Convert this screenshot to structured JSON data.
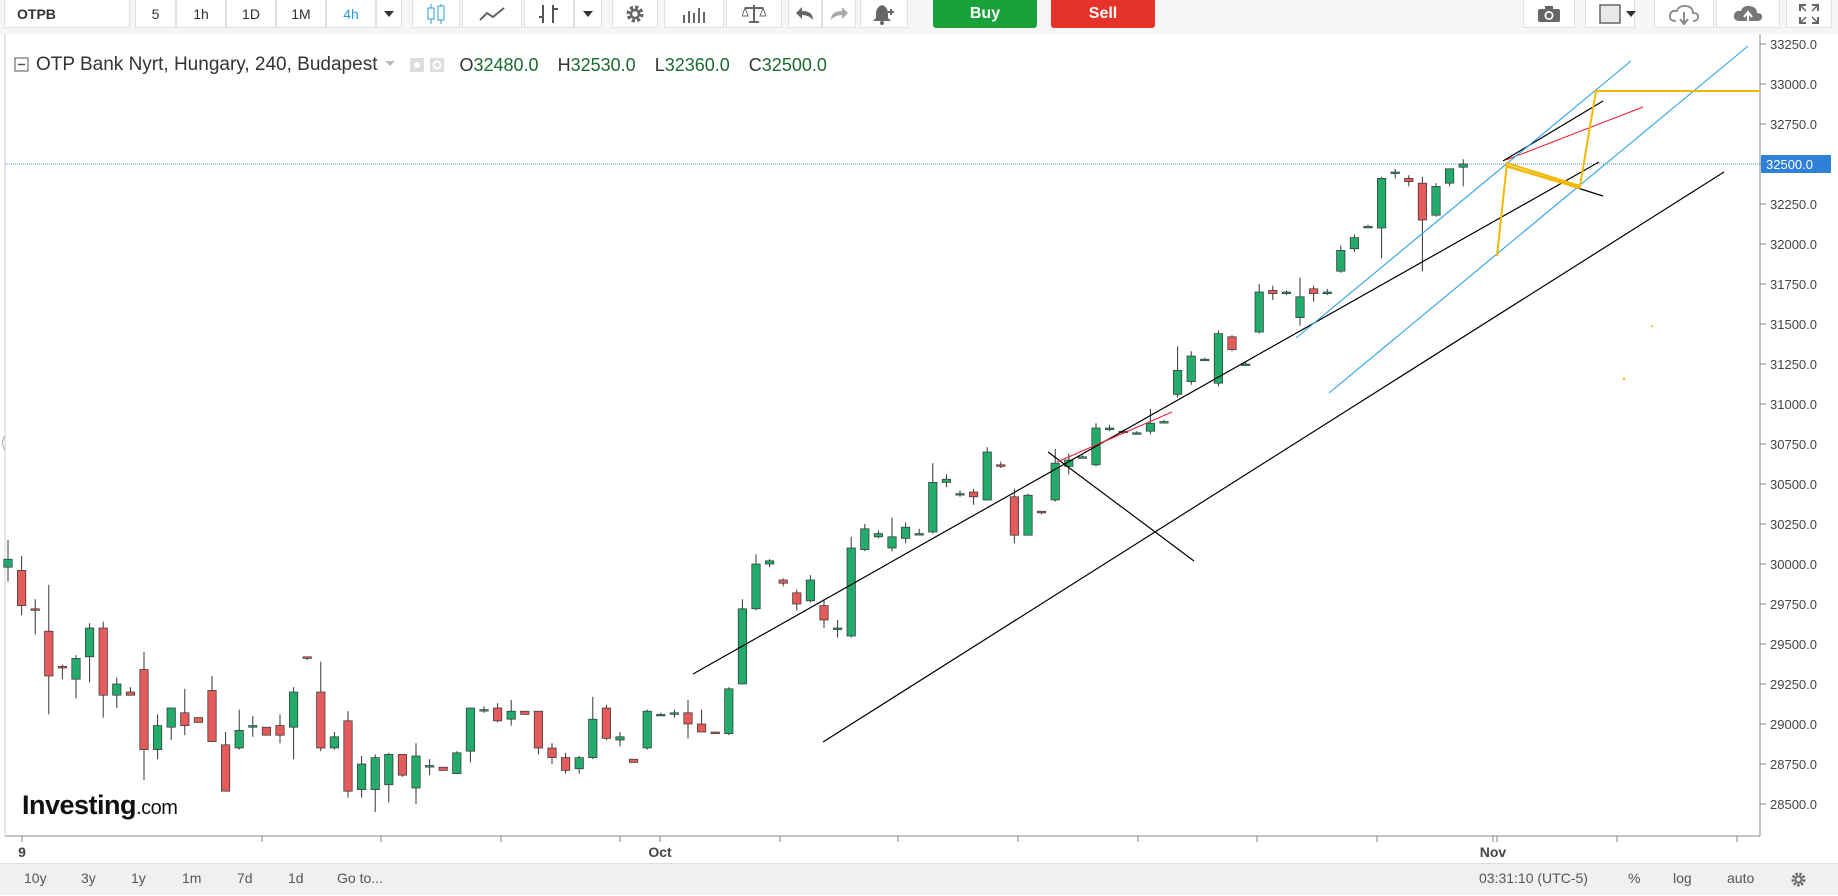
{
  "toolbar": {
    "symbol": "OTPB",
    "intervals": [
      "5",
      "1h",
      "1D",
      "1M",
      "4h"
    ],
    "active_interval": "4h",
    "buy_label": "Buy",
    "sell_label": "Sell",
    "icons": [
      "dropdown-icon",
      "candles-icon",
      "line-chart-icon",
      "indicators-icon",
      "dropdown-icon",
      "settings-icon",
      "bars-icon",
      "compare-icon",
      "undo-icon",
      "redo-icon",
      "alert-bell-icon",
      "camera-icon",
      "color-box-icon",
      "dropdown-icon",
      "cloud-download-icon",
      "cloud-upload-icon",
      "fullscreen-icon"
    ]
  },
  "legend": {
    "title": "OTP Bank Nyrt, Hungary, 240, Budapest",
    "o_label": "O",
    "o_value": "32480.0",
    "h_label": "H",
    "h_value": "32530.0",
    "l_label": "L",
    "l_value": "32360.0",
    "c_label": "C",
    "c_value": "32500.0"
  },
  "bottom": {
    "ranges": [
      "10y",
      "3y",
      "1y",
      "1m",
      "7d",
      "1d"
    ],
    "goto": "Go to...",
    "time": "03:31:10 (UTC-5)",
    "percent": "%",
    "log": "log",
    "auto": "auto"
  },
  "logo": {
    "main": "Investing",
    "suffix": ".com"
  },
  "colors": {
    "up": "#22ab6a",
    "down": "#e35b5b",
    "channel": "#000000",
    "inner_channel": "#29a4e6",
    "resistance": "#e8192c",
    "flag": "#f5b800",
    "price_line": "#2f6ad0",
    "price_tag": "#2f80d8"
  },
  "chart_data": {
    "type": "candlestick",
    "title": "OTP Bank Nyrt, Hungary, 240, Budapest",
    "x_tick_labels": [
      "9",
      "Oct",
      "Nov"
    ],
    "y_ticks": [
      28500,
      28750,
      29000,
      29250,
      29500,
      29750,
      30000,
      30250,
      30500,
      30750,
      31000,
      31250,
      31500,
      31750,
      32000,
      32250,
      32500,
      32750,
      33000,
      33250
    ],
    "ylim": [
      28300,
      33270
    ],
    "last_price": 32500.0,
    "last_price_label": "32500.0",
    "grid": false,
    "candles": [
      {
        "o": 29980,
        "h": 30150,
        "l": 29890,
        "c": 30030
      },
      {
        "o": 29960,
        "h": 30050,
        "l": 29680,
        "c": 29740
      },
      {
        "o": 29720,
        "h": 29780,
        "l": 29560,
        "c": 29710
      },
      {
        "o": 29580,
        "h": 29870,
        "l": 29060,
        "c": 29300
      },
      {
        "o": 29360,
        "h": 29370,
        "l": 29280,
        "c": 29350
      },
      {
        "o": 29280,
        "h": 29430,
        "l": 29160,
        "c": 29410
      },
      {
        "o": 29420,
        "h": 29630,
        "l": 29260,
        "c": 29600
      },
      {
        "o": 29600,
        "h": 29640,
        "l": 29040,
        "c": 29180
      },
      {
        "o": 29180,
        "h": 29290,
        "l": 29100,
        "c": 29250
      },
      {
        "o": 29200,
        "h": 29230,
        "l": 29180,
        "c": 29180
      },
      {
        "o": 29340,
        "h": 29450,
        "l": 28650,
        "c": 28840
      },
      {
        "o": 28840,
        "h": 29060,
        "l": 28780,
        "c": 28990
      },
      {
        "o": 28980,
        "h": 29090,
        "l": 28900,
        "c": 29100
      },
      {
        "o": 29070,
        "h": 29220,
        "l": 28930,
        "c": 28990
      },
      {
        "o": 29040,
        "h": 29040,
        "l": 29010,
        "c": 29010
      },
      {
        "o": 29210,
        "h": 29300,
        "l": 28890,
        "c": 28890
      },
      {
        "o": 28870,
        "h": 28950,
        "l": 28580,
        "c": 28580
      },
      {
        "o": 28850,
        "h": 29090,
        "l": 28840,
        "c": 28960
      },
      {
        "o": 28980,
        "h": 29050,
        "l": 28920,
        "c": 28990
      },
      {
        "o": 28980,
        "h": 28980,
        "l": 28930,
        "c": 28930
      },
      {
        "o": 28990,
        "h": 29060,
        "l": 28880,
        "c": 28930
      },
      {
        "o": 28980,
        "h": 29230,
        "l": 28780,
        "c": 29200
      },
      {
        "o": 29420,
        "h": 29420,
        "l": 29400,
        "c": 29410
      },
      {
        "o": 29200,
        "h": 29390,
        "l": 28830,
        "c": 28850
      },
      {
        "o": 28850,
        "h": 28950,
        "l": 28840,
        "c": 28920
      },
      {
        "o": 29020,
        "h": 29080,
        "l": 28540,
        "c": 28580
      },
      {
        "o": 28590,
        "h": 28800,
        "l": 28540,
        "c": 28750
      },
      {
        "o": 28590,
        "h": 28810,
        "l": 28450,
        "c": 28790
      },
      {
        "o": 28620,
        "h": 28820,
        "l": 28510,
        "c": 28810
      },
      {
        "o": 28810,
        "h": 28810,
        "l": 28670,
        "c": 28680
      },
      {
        "o": 28600,
        "h": 28880,
        "l": 28500,
        "c": 28800
      },
      {
        "o": 28740,
        "h": 28780,
        "l": 28680,
        "c": 28740
      },
      {
        "o": 28730,
        "h": 28730,
        "l": 28710,
        "c": 28710
      },
      {
        "o": 28690,
        "h": 28830,
        "l": 28690,
        "c": 28820
      },
      {
        "o": 28830,
        "h": 29100,
        "l": 28760,
        "c": 29100
      },
      {
        "o": 29090,
        "h": 29110,
        "l": 29070,
        "c": 29090
      },
      {
        "o": 29100,
        "h": 29130,
        "l": 29010,
        "c": 29020
      },
      {
        "o": 29030,
        "h": 29150,
        "l": 28990,
        "c": 29080
      },
      {
        "o": 29080,
        "h": 29080,
        "l": 29060,
        "c": 29060
      },
      {
        "o": 29080,
        "h": 29080,
        "l": 28810,
        "c": 28850
      },
      {
        "o": 28850,
        "h": 28880,
        "l": 28750,
        "c": 28790
      },
      {
        "o": 28790,
        "h": 28820,
        "l": 28690,
        "c": 28710
      },
      {
        "o": 28720,
        "h": 28800,
        "l": 28690,
        "c": 28790
      },
      {
        "o": 28790,
        "h": 29170,
        "l": 28780,
        "c": 29030
      },
      {
        "o": 29100,
        "h": 29120,
        "l": 28900,
        "c": 28910
      },
      {
        "o": 28900,
        "h": 28950,
        "l": 28860,
        "c": 28920
      },
      {
        "o": 28780,
        "h": 28780,
        "l": 28760,
        "c": 28760
      },
      {
        "o": 28850,
        "h": 29090,
        "l": 28840,
        "c": 29080
      },
      {
        "o": 29060,
        "h": 29070,
        "l": 29050,
        "c": 29060
      },
      {
        "o": 29070,
        "h": 29090,
        "l": 29040,
        "c": 29070
      },
      {
        "o": 29070,
        "h": 29150,
        "l": 28910,
        "c": 29000
      },
      {
        "o": 29000,
        "h": 29090,
        "l": 28960,
        "c": 28950
      },
      {
        "o": 28950,
        "h": 28950,
        "l": 28940,
        "c": 28940
      },
      {
        "o": 28940,
        "h": 29230,
        "l": 28930,
        "c": 29220
      },
      {
        "o": 29250,
        "h": 29780,
        "l": 29250,
        "c": 29720
      },
      {
        "o": 29720,
        "h": 30060,
        "l": 29710,
        "c": 30000
      },
      {
        "o": 30000,
        "h": 30030,
        "l": 29980,
        "c": 30020
      },
      {
        "o": 29900,
        "h": 29910,
        "l": 29860,
        "c": 29880
      },
      {
        "o": 29820,
        "h": 29840,
        "l": 29710,
        "c": 29750
      },
      {
        "o": 29770,
        "h": 29930,
        "l": 29760,
        "c": 29900
      },
      {
        "o": 29740,
        "h": 29780,
        "l": 29600,
        "c": 29650
      },
      {
        "o": 29600,
        "h": 29650,
        "l": 29540,
        "c": 29600
      },
      {
        "o": 29550,
        "h": 30170,
        "l": 29540,
        "c": 30100
      },
      {
        "o": 30090,
        "h": 30250,
        "l": 30080,
        "c": 30220
      },
      {
        "o": 30170,
        "h": 30210,
        "l": 30160,
        "c": 30190
      },
      {
        "o": 30100,
        "h": 30290,
        "l": 30080,
        "c": 30170
      },
      {
        "o": 30160,
        "h": 30260,
        "l": 30130,
        "c": 30230
      },
      {
        "o": 30190,
        "h": 30220,
        "l": 30180,
        "c": 30190
      },
      {
        "o": 30200,
        "h": 30630,
        "l": 30190,
        "c": 30510
      },
      {
        "o": 30510,
        "h": 30560,
        "l": 30480,
        "c": 30530
      },
      {
        "o": 30440,
        "h": 30460,
        "l": 30420,
        "c": 30440
      },
      {
        "o": 30450,
        "h": 30470,
        "l": 30370,
        "c": 30420
      },
      {
        "o": 30400,
        "h": 30730,
        "l": 30400,
        "c": 30700
      },
      {
        "o": 30620,
        "h": 30640,
        "l": 30600,
        "c": 30610
      },
      {
        "o": 30420,
        "h": 30470,
        "l": 30130,
        "c": 30180
      },
      {
        "o": 30180,
        "h": 30440,
        "l": 30180,
        "c": 30430
      },
      {
        "o": 30330,
        "h": 30330,
        "l": 30310,
        "c": 30320
      },
      {
        "o": 30400,
        "h": 30720,
        "l": 30390,
        "c": 30630
      },
      {
        "o": 30610,
        "h": 30690,
        "l": 30560,
        "c": 30650
      },
      {
        "o": 30670,
        "h": 30680,
        "l": 30660,
        "c": 30670
      },
      {
        "o": 30620,
        "h": 30880,
        "l": 30610,
        "c": 30850
      },
      {
        "o": 30840,
        "h": 30870,
        "l": 30830,
        "c": 30850
      },
      {
        "o": 30830,
        "h": 30840,
        "l": 30820,
        "c": 30830
      },
      {
        "o": 30820,
        "h": 30830,
        "l": 30810,
        "c": 30820
      },
      {
        "o": 30830,
        "h": 30970,
        "l": 30810,
        "c": 30880
      },
      {
        "o": 30890,
        "h": 30900,
        "l": 30880,
        "c": 30890
      },
      {
        "o": 31060,
        "h": 31360,
        "l": 31040,
        "c": 31210
      },
      {
        "o": 31140,
        "h": 31330,
        "l": 31120,
        "c": 31300
      },
      {
        "o": 31280,
        "h": 31290,
        "l": 31270,
        "c": 31280
      },
      {
        "o": 31130,
        "h": 31460,
        "l": 31110,
        "c": 31440
      },
      {
        "o": 31420,
        "h": 31430,
        "l": 31330,
        "c": 31340
      },
      {
        "o": 31250,
        "h": 31260,
        "l": 31240,
        "c": 31250
      },
      {
        "o": 31450,
        "h": 31750,
        "l": 31440,
        "c": 31700
      },
      {
        "o": 31710,
        "h": 31740,
        "l": 31650,
        "c": 31690
      },
      {
        "o": 31690,
        "h": 31710,
        "l": 31680,
        "c": 31700
      },
      {
        "o": 31540,
        "h": 31790,
        "l": 31490,
        "c": 31670
      },
      {
        "o": 31720,
        "h": 31740,
        "l": 31640,
        "c": 31690
      },
      {
        "o": 31690,
        "h": 31720,
        "l": 31680,
        "c": 31700
      },
      {
        "o": 31830,
        "h": 31990,
        "l": 31820,
        "c": 31960
      },
      {
        "o": 31970,
        "h": 32060,
        "l": 31950,
        "c": 32040
      },
      {
        "o": 32110,
        "h": 32120,
        "l": 32100,
        "c": 32110
      },
      {
        "o": 32100,
        "h": 32420,
        "l": 31910,
        "c": 32410
      },
      {
        "o": 32440,
        "h": 32470,
        "l": 32410,
        "c": 32450
      },
      {
        "o": 32410,
        "h": 32430,
        "l": 32360,
        "c": 32390
      },
      {
        "o": 32380,
        "h": 32420,
        "l": 31830,
        "c": 32150
      },
      {
        "o": 32180,
        "h": 32380,
        "l": 32170,
        "c": 32360
      },
      {
        "o": 32380,
        "h": 32470,
        "l": 32360,
        "c": 32470
      },
      {
        "o": 32480,
        "h": 32530,
        "l": 32360,
        "c": 32500
      }
    ]
  }
}
